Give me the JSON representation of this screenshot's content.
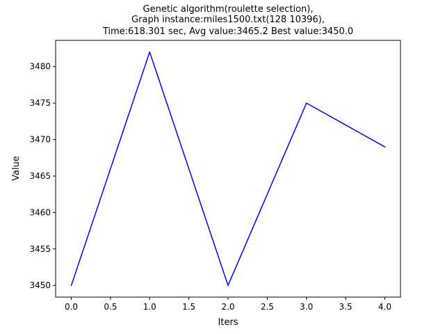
{
  "chart_data": {
    "type": "line",
    "title_lines": [
      "Genetic algorithm(roulette selection),",
      "Graph instance:miles1500.txt(128 10396),",
      "Time:618.301 sec, Avg value:3465.2 Best value:3450.0"
    ],
    "xlabel": "Iters",
    "ylabel": "Value",
    "xlim": [
      -0.2,
      4.2
    ],
    "ylim": [
      3448.4,
      3483.6
    ],
    "x_ticks": [
      0.0,
      0.5,
      1.0,
      1.5,
      2.0,
      2.5,
      3.0,
      3.5,
      4.0
    ],
    "x_tick_labels": [
      "0.0",
      "0.5",
      "1.0",
      "1.5",
      "2.0",
      "2.5",
      "3.0",
      "3.5",
      "4.0"
    ],
    "y_ticks": [
      3450,
      3455,
      3460,
      3465,
      3470,
      3475,
      3480
    ],
    "y_tick_labels": [
      "3450",
      "3455",
      "3460",
      "3465",
      "3470",
      "3475",
      "3480"
    ],
    "grid": false,
    "series": [
      {
        "color": "#0000ff",
        "x": [
          0,
          1,
          2,
          3,
          4
        ],
        "y": [
          3450,
          3482,
          3450,
          3475,
          3469
        ]
      }
    ]
  }
}
